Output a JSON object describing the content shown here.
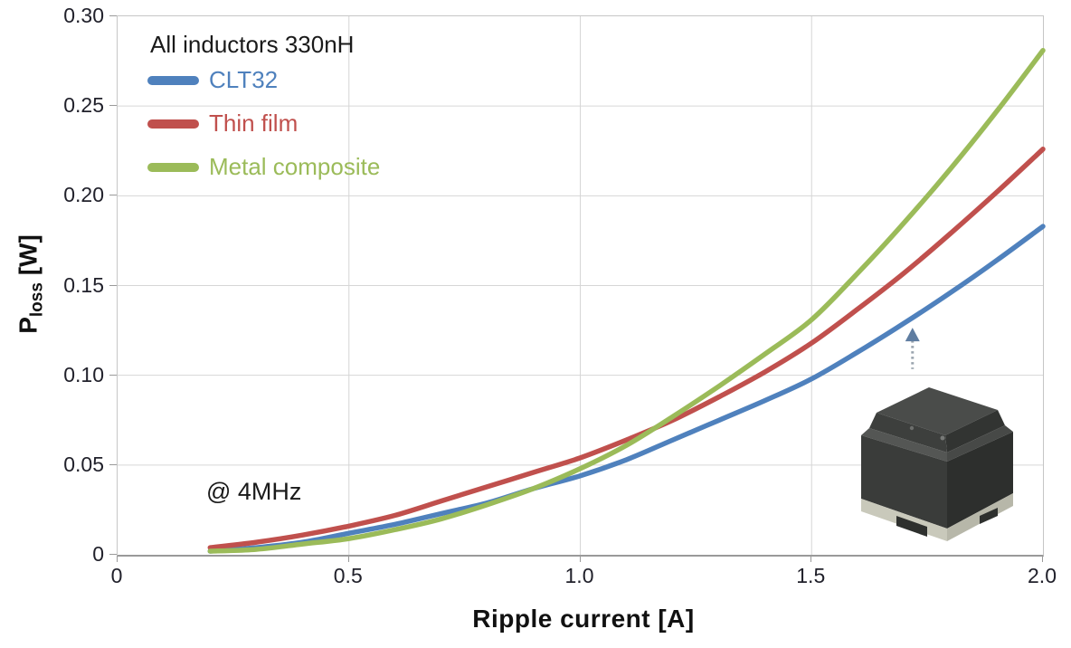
{
  "page": {
    "background": "#ffffff"
  },
  "legend": {
    "title": "All inductors 330nH"
  },
  "annotation_text": "@ 4MHz",
  "axes": {
    "xlabel": "Ripple current [A]",
    "ylabel_main": "P",
    "ylabel_sub": "loss",
    "ylabel_unit": " [W]"
  },
  "colors": {
    "clt32": "#4F81BD",
    "thin_film": "#C0504D",
    "metal_composite": "#9BBB59",
    "grid": "#d6d6d6",
    "axis_line": "#9a9a9a",
    "tick_text": "#21212b",
    "arrow_head": "#5f7da1",
    "arrow_stem": "#9aa4ae"
  },
  "inset_icon": "inductor-3d-render",
  "chart_data": {
    "type": "line",
    "title": "",
    "legend_title": "All inductors 330nH",
    "legend_position": "top-left",
    "annotation": "@ 4MHz",
    "xlabel": "Ripple current [A]",
    "ylabel": "P_loss [W]",
    "xlim": [
      0,
      2.0
    ],
    "ylim": [
      0,
      0.3
    ],
    "grid": true,
    "x_ticks": [
      {
        "v": 0,
        "label": "0"
      },
      {
        "v": 0.5,
        "label": "0.5"
      },
      {
        "v": 1.0,
        "label": "1.0"
      },
      {
        "v": 1.5,
        "label": "1.5"
      },
      {
        "v": 2.0,
        "label": "2.0"
      }
    ],
    "y_ticks": [
      {
        "v": 0,
        "label": "0"
      },
      {
        "v": 0.05,
        "label": "0.05"
      },
      {
        "v": 0.1,
        "label": "0.10"
      },
      {
        "v": 0.15,
        "label": "0.15"
      },
      {
        "v": 0.2,
        "label": "0.20"
      },
      {
        "v": 0.25,
        "label": "0.25"
      },
      {
        "v": 0.3,
        "label": "0.30"
      }
    ],
    "x": [
      0.2,
      0.3,
      0.4,
      0.5,
      0.6,
      0.7,
      0.8,
      0.9,
      1.0,
      1.1,
      1.2,
      1.3,
      1.4,
      1.5,
      1.6,
      1.7,
      1.8,
      1.9,
      2.0
    ],
    "series": [
      {
        "name": "CLT32",
        "color": "#4F81BD",
        "values": [
          0.002,
          0.004,
          0.007,
          0.012,
          0.017,
          0.023,
          0.029,
          0.037,
          0.044,
          0.053,
          0.064,
          0.075,
          0.086,
          0.098,
          0.113,
          0.129,
          0.146,
          0.164,
          0.183
        ]
      },
      {
        "name": "Thin film",
        "color": "#C0504D",
        "values": [
          0.004,
          0.007,
          0.011,
          0.016,
          0.022,
          0.03,
          0.038,
          0.046,
          0.054,
          0.064,
          0.075,
          0.088,
          0.102,
          0.118,
          0.137,
          0.157,
          0.179,
          0.202,
          0.226
        ]
      },
      {
        "name": "Metal composite",
        "color": "#9BBB59",
        "values": [
          0.002,
          0.003,
          0.006,
          0.009,
          0.014,
          0.02,
          0.028,
          0.037,
          0.048,
          0.061,
          0.077,
          0.094,
          0.112,
          0.131,
          0.157,
          0.185,
          0.215,
          0.247,
          0.281
        ]
      }
    ],
    "arrow_annotation": {
      "x": 1.72,
      "y_tip": 0.126,
      "y_base": 0.103,
      "style": "dashed-up-arrow",
      "points_to": "CLT32"
    }
  }
}
